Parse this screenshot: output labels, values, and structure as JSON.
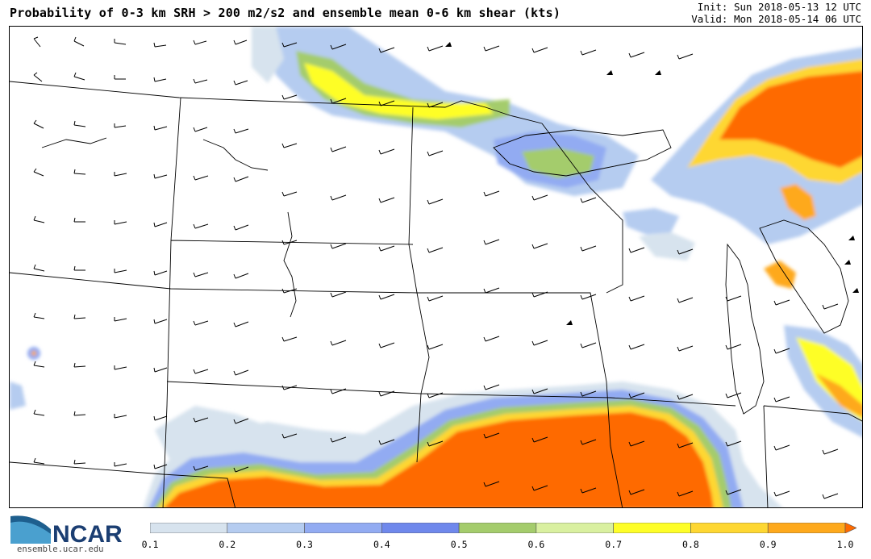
{
  "header": {
    "title": "Probability of 0-3 km SRH > 200 m2/s2 and ensemble mean 0-6 km shear (kts)",
    "init": "Init: Sun 2018-05-13 12 UTC",
    "valid": "Valid: Mon 2018-05-14 06 UTC"
  },
  "logo": {
    "text": "NCAR",
    "url_text": "ensemble.ucar.edu"
  },
  "colorbar": {
    "ticks": [
      "0.1",
      "0.2",
      "0.3",
      "0.4",
      "0.5",
      "0.6",
      "0.7",
      "0.8",
      "0.9",
      "1.0"
    ],
    "colors": [
      "#d7e3ee",
      "#b5ccf0",
      "#92abf2",
      "#6f88ec",
      "#a4cc6c",
      "#d9f0a0",
      "#fefe28",
      "#fed732",
      "#fea91c",
      "#fe6a00"
    ]
  }
}
